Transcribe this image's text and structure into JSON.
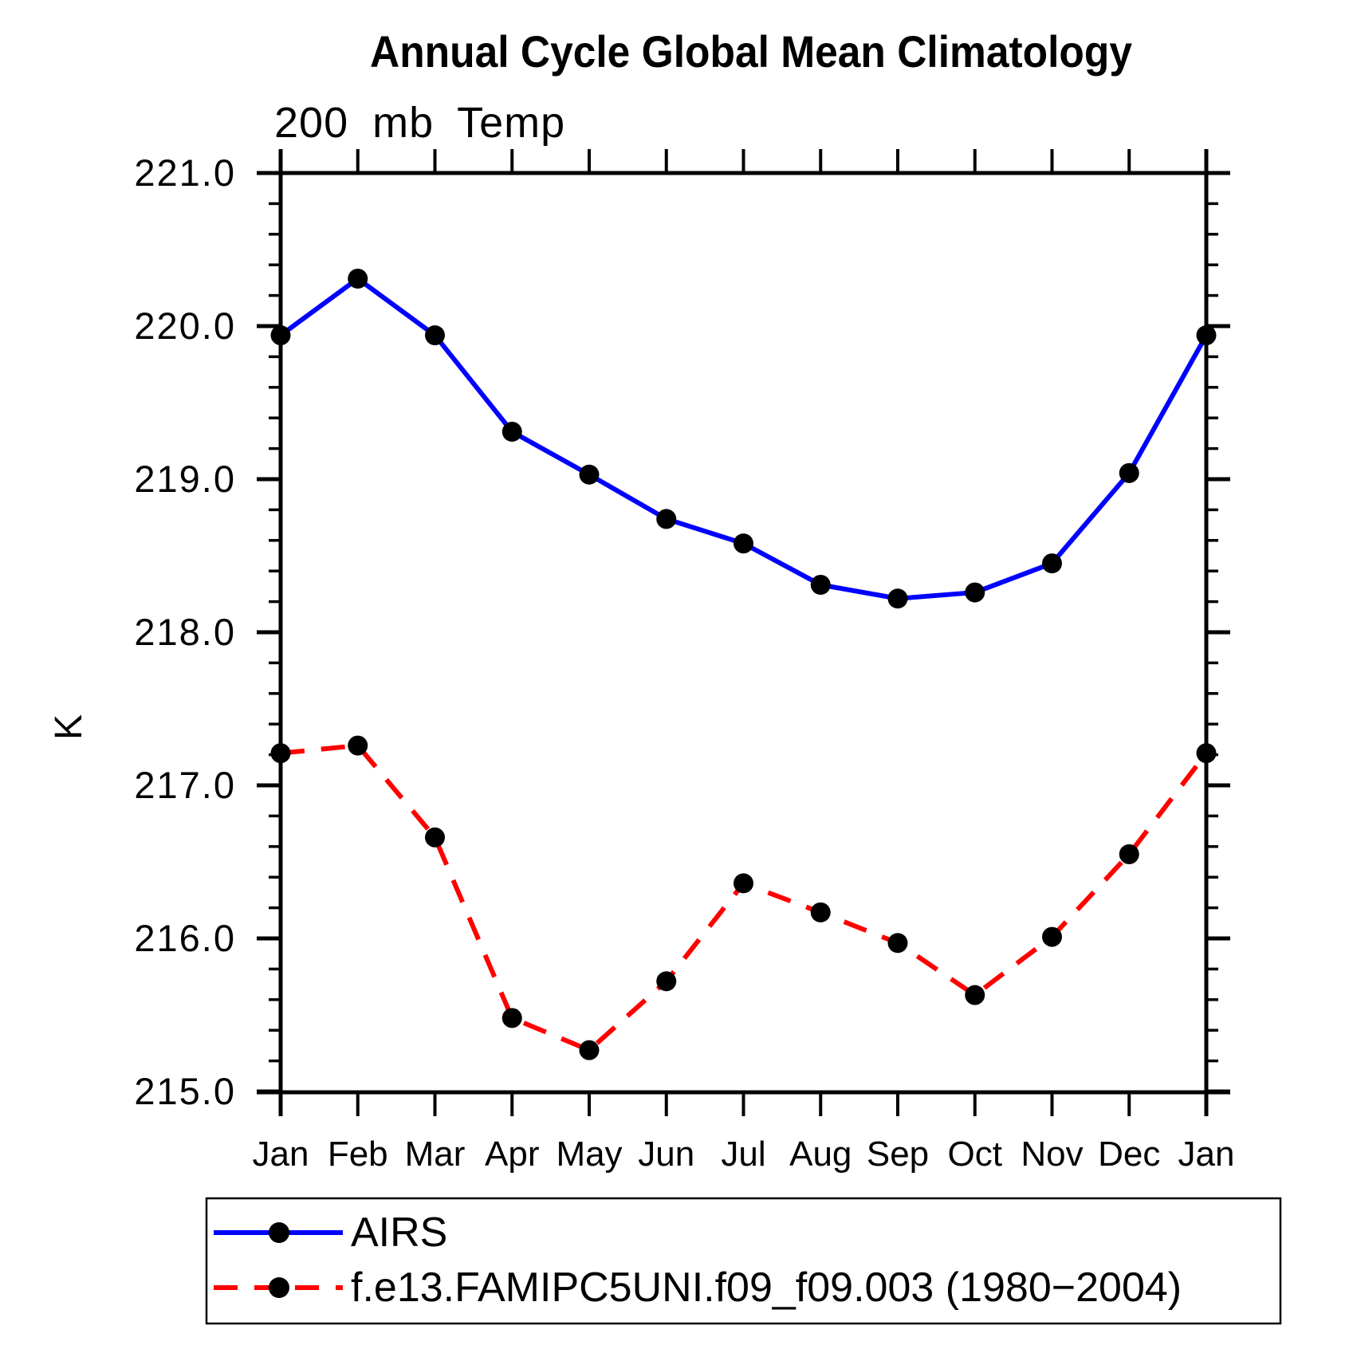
{
  "chart_data": {
    "type": "line",
    "title": "Annual Cycle Global Mean Climatology",
    "subtitle": "200 mb Temp",
    "ylabel": "K",
    "xlabel": "",
    "categories": [
      "Jan",
      "Feb",
      "Mar",
      "Apr",
      "May",
      "Jun",
      "Jul",
      "Aug",
      "Sep",
      "Oct",
      "Nov",
      "Dec",
      "Jan"
    ],
    "ylim": [
      215.0,
      221.0
    ],
    "ytick_labels": [
      "221.0",
      "220.0",
      "219.0",
      "218.0",
      "217.0",
      "216.0",
      "215.0"
    ],
    "ytick_values": [
      221.0,
      220.0,
      219.0,
      218.0,
      217.0,
      216.0,
      215.0
    ],
    "ytick_minor_step": 0.2,
    "grid": false,
    "tick_direction": "outward",
    "legend_position": "bottom-left",
    "axis_color": "#000000",
    "series": [
      {
        "name": "AIRS",
        "color": "#0000ff",
        "line_style": "solid",
        "marker": "filled-circle",
        "marker_color": "#000000",
        "values": [
          219.94,
          220.31,
          219.94,
          219.31,
          219.03,
          218.74,
          218.58,
          218.31,
          218.22,
          218.26,
          218.45,
          219.04,
          219.94
        ]
      },
      {
        "name": "f.e13.FAMIPC5UNI.f09_f09.003 (1980−2004)",
        "color": "#ff0000",
        "line_style": "dashed",
        "marker": "filled-circle",
        "marker_color": "#000000",
        "values": [
          217.21,
          217.26,
          216.66,
          215.48,
          215.27,
          215.72,
          216.36,
          216.17,
          215.97,
          215.63,
          216.01,
          216.55,
          217.21
        ]
      }
    ]
  }
}
